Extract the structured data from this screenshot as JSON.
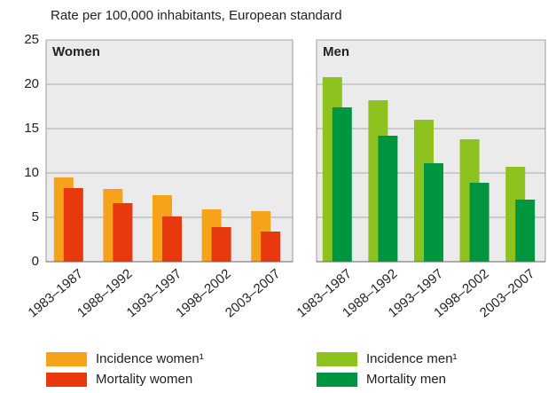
{
  "chart_data": {
    "type": "bar",
    "y_label": "Rate per 100,000 inhabitants, European standard",
    "categories": [
      "1983–1987",
      "1988–1992",
      "1993–1997",
      "1998–2002",
      "2003–2007"
    ],
    "ylim": [
      0,
      25
    ],
    "yticks": [
      0,
      5,
      10,
      15,
      20,
      25
    ],
    "grid": true,
    "panels": [
      {
        "title": "Women",
        "series": [
          {
            "name": "Incidence women¹",
            "color": "#f7a21b",
            "values": [
              9.5,
              8.2,
              7.5,
              5.9,
              5.7
            ]
          },
          {
            "name": "Mortality women",
            "color": "#e8380d",
            "values": [
              8.3,
              6.6,
              5.1,
              3.9,
              3.4
            ]
          }
        ]
      },
      {
        "title": "Men",
        "series": [
          {
            "name": "Incidence men¹",
            "color": "#8dc21f",
            "values": [
              20.8,
              18.2,
              16.0,
              13.8,
              10.7
            ]
          },
          {
            "name": "Mortality men",
            "color": "#00963f",
            "values": [
              17.4,
              14.2,
              11.1,
              8.9,
              7.0
            ]
          }
        ]
      }
    ]
  }
}
